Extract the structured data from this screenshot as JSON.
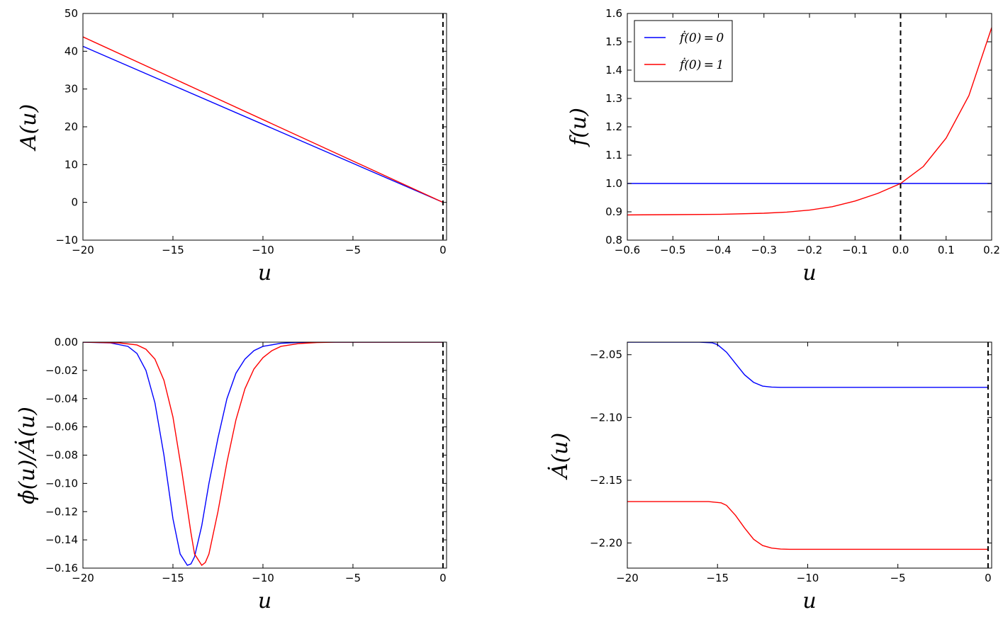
{
  "colors": {
    "blue": "#0000ff",
    "red": "#ff0000",
    "axis": "#000000",
    "vline": "#000000"
  },
  "chart_data": [
    {
      "type": "line",
      "panel": "top-left",
      "xlabel": "u",
      "ylabel": "A(u)",
      "xlim": [
        -20,
        0.2
      ],
      "ylim": [
        -10,
        50
      ],
      "xticks": [
        -20,
        -15,
        -10,
        -5,
        0
      ],
      "xtick_labels": [
        "−20",
        "−15",
        "−10",
        "−5",
        "0"
      ],
      "yticks": [
        -10,
        0,
        10,
        20,
        30,
        40,
        50
      ],
      "ytick_labels": [
        "−10",
        "0",
        "10",
        "20",
        "30",
        "40",
        "50"
      ],
      "vline_x": 0,
      "grid": false,
      "series": [
        {
          "color": "#0000ff",
          "x": [
            -20,
            0
          ],
          "y": [
            41.3,
            0
          ]
        },
        {
          "color": "#ff0000",
          "x": [
            -20,
            0
          ],
          "y": [
            43.8,
            0
          ]
        }
      ]
    },
    {
      "type": "line",
      "panel": "top-right",
      "xlabel": "u",
      "ylabel": "f(u)",
      "xlim": [
        -0.6,
        0.2
      ],
      "ylim": [
        0.8,
        1.6
      ],
      "xticks": [
        -0.6,
        -0.5,
        -0.4,
        -0.3,
        -0.2,
        -0.1,
        0.0,
        0.1,
        0.2
      ],
      "xtick_labels": [
        "−0.6",
        "−0.5",
        "−0.4",
        "−0.3",
        "−0.2",
        "−0.1",
        "0.0",
        "0.1",
        "0.2"
      ],
      "yticks": [
        0.8,
        0.9,
        1.0,
        1.1,
        1.2,
        1.3,
        1.4,
        1.5,
        1.6
      ],
      "ytick_labels": [
        "0.8",
        "0.9",
        "1.0",
        "1.1",
        "1.2",
        "1.3",
        "1.4",
        "1.5",
        "1.6"
      ],
      "vline_x": 0,
      "grid": false,
      "legend_position": "upper-left",
      "series": [
        {
          "name": "ḟ(0) = 0",
          "color": "#0000ff",
          "x": [
            -0.6,
            0.2
          ],
          "y": [
            1.0,
            1.0
          ]
        },
        {
          "name": "ḟ(0) = 1",
          "color": "#ff0000",
          "x": [
            -0.6,
            -0.5,
            -0.4,
            -0.3,
            -0.25,
            -0.2,
            -0.15,
            -0.1,
            -0.05,
            0.0,
            0.05,
            0.1,
            0.15,
            0.2
          ],
          "y": [
            0.889,
            0.89,
            0.891,
            0.895,
            0.899,
            0.906,
            0.918,
            0.938,
            0.965,
            1.0,
            1.06,
            1.16,
            1.31,
            1.55
          ]
        }
      ]
    },
    {
      "type": "line",
      "panel": "bottom-left",
      "xlabel": "u",
      "ylabel": "ϕ̇(u)/Ȧ(u)",
      "xlim": [
        -20,
        0.2
      ],
      "ylim": [
        -0.16,
        0.0
      ],
      "xticks": [
        -20,
        -15,
        -10,
        -5,
        0
      ],
      "xtick_labels": [
        "−20",
        "−15",
        "−10",
        "−5",
        "0"
      ],
      "yticks": [
        -0.16,
        -0.14,
        -0.12,
        -0.1,
        -0.08,
        -0.06,
        -0.04,
        -0.02,
        0.0
      ],
      "ytick_labels": [
        "−0.16",
        "−0.14",
        "−0.12",
        "−0.10",
        "−0.08",
        "−0.06",
        "−0.04",
        "−0.02",
        "0.00"
      ],
      "vline_x": 0,
      "grid": false,
      "series": [
        {
          "color": "#0000ff",
          "x": [
            -20,
            -18.5,
            -17.5,
            -17,
            -16.5,
            -16,
            -15.5,
            -15,
            -14.6,
            -14.2,
            -14.0,
            -13.8,
            -13.4,
            -13,
            -12.5,
            -12,
            -11.5,
            -11,
            -10.5,
            -10,
            -9,
            -8,
            -7,
            -6,
            0
          ],
          "y": [
            0,
            -0.0005,
            -0.003,
            -0.008,
            -0.02,
            -0.043,
            -0.08,
            -0.125,
            -0.15,
            -0.158,
            -0.157,
            -0.152,
            -0.13,
            -0.1,
            -0.068,
            -0.04,
            -0.022,
            -0.012,
            -0.006,
            -0.003,
            -0.0008,
            -0.0002,
            0,
            0,
            0
          ]
        },
        {
          "color": "#ff0000",
          "x": [
            -20,
            -18,
            -17,
            -16.5,
            -16,
            -15.5,
            -15,
            -14.5,
            -14,
            -13.8,
            -13.4,
            -13.2,
            -13,
            -12.5,
            -12,
            -11.5,
            -11,
            -10.5,
            -10,
            -9.5,
            -9,
            -8,
            -7,
            -6,
            0
          ],
          "y": [
            0,
            -0.0005,
            -0.002,
            -0.005,
            -0.012,
            -0.027,
            -0.053,
            -0.092,
            -0.135,
            -0.15,
            -0.158,
            -0.156,
            -0.15,
            -0.12,
            -0.085,
            -0.055,
            -0.033,
            -0.019,
            -0.011,
            -0.006,
            -0.003,
            -0.001,
            -0.0003,
            0,
            0
          ]
        }
      ]
    },
    {
      "type": "line",
      "panel": "bottom-right",
      "xlabel": "u",
      "ylabel": "Ȧ(u)",
      "xlim": [
        -20,
        0.2
      ],
      "ylim": [
        -2.22,
        -2.04
      ],
      "xticks": [
        -20,
        -15,
        -10,
        -5,
        0
      ],
      "xtick_labels": [
        "−20",
        "−15",
        "−10",
        "−5",
        "0"
      ],
      "yticks": [
        -2.2,
        -2.15,
        -2.1,
        -2.05
      ],
      "ytick_labels": [
        "−2.20",
        "−2.15",
        "−2.10",
        "−2.05"
      ],
      "vline_x": 0,
      "grid": false,
      "series": [
        {
          "color": "#0000ff",
          "x": [
            -20,
            -16,
            -15.3,
            -15,
            -14.5,
            -14,
            -13.5,
            -13,
            -12.5,
            -12,
            -11.5,
            -11,
            0
          ],
          "y": [
            -2.04,
            -2.04,
            -2.0405,
            -2.042,
            -2.048,
            -2.057,
            -2.066,
            -2.072,
            -2.075,
            -2.0758,
            -2.076,
            -2.076,
            -2.076
          ]
        },
        {
          "color": "#ff0000",
          "x": [
            -20,
            -15.5,
            -14.8,
            -14.5,
            -14,
            -13.5,
            -13,
            -12.5,
            -12,
            -11.5,
            -11,
            -10.5,
            0
          ],
          "y": [
            -2.167,
            -2.167,
            -2.168,
            -2.17,
            -2.178,
            -2.188,
            -2.197,
            -2.202,
            -2.204,
            -2.2048,
            -2.205,
            -2.205,
            -2.205
          ]
        }
      ]
    }
  ]
}
